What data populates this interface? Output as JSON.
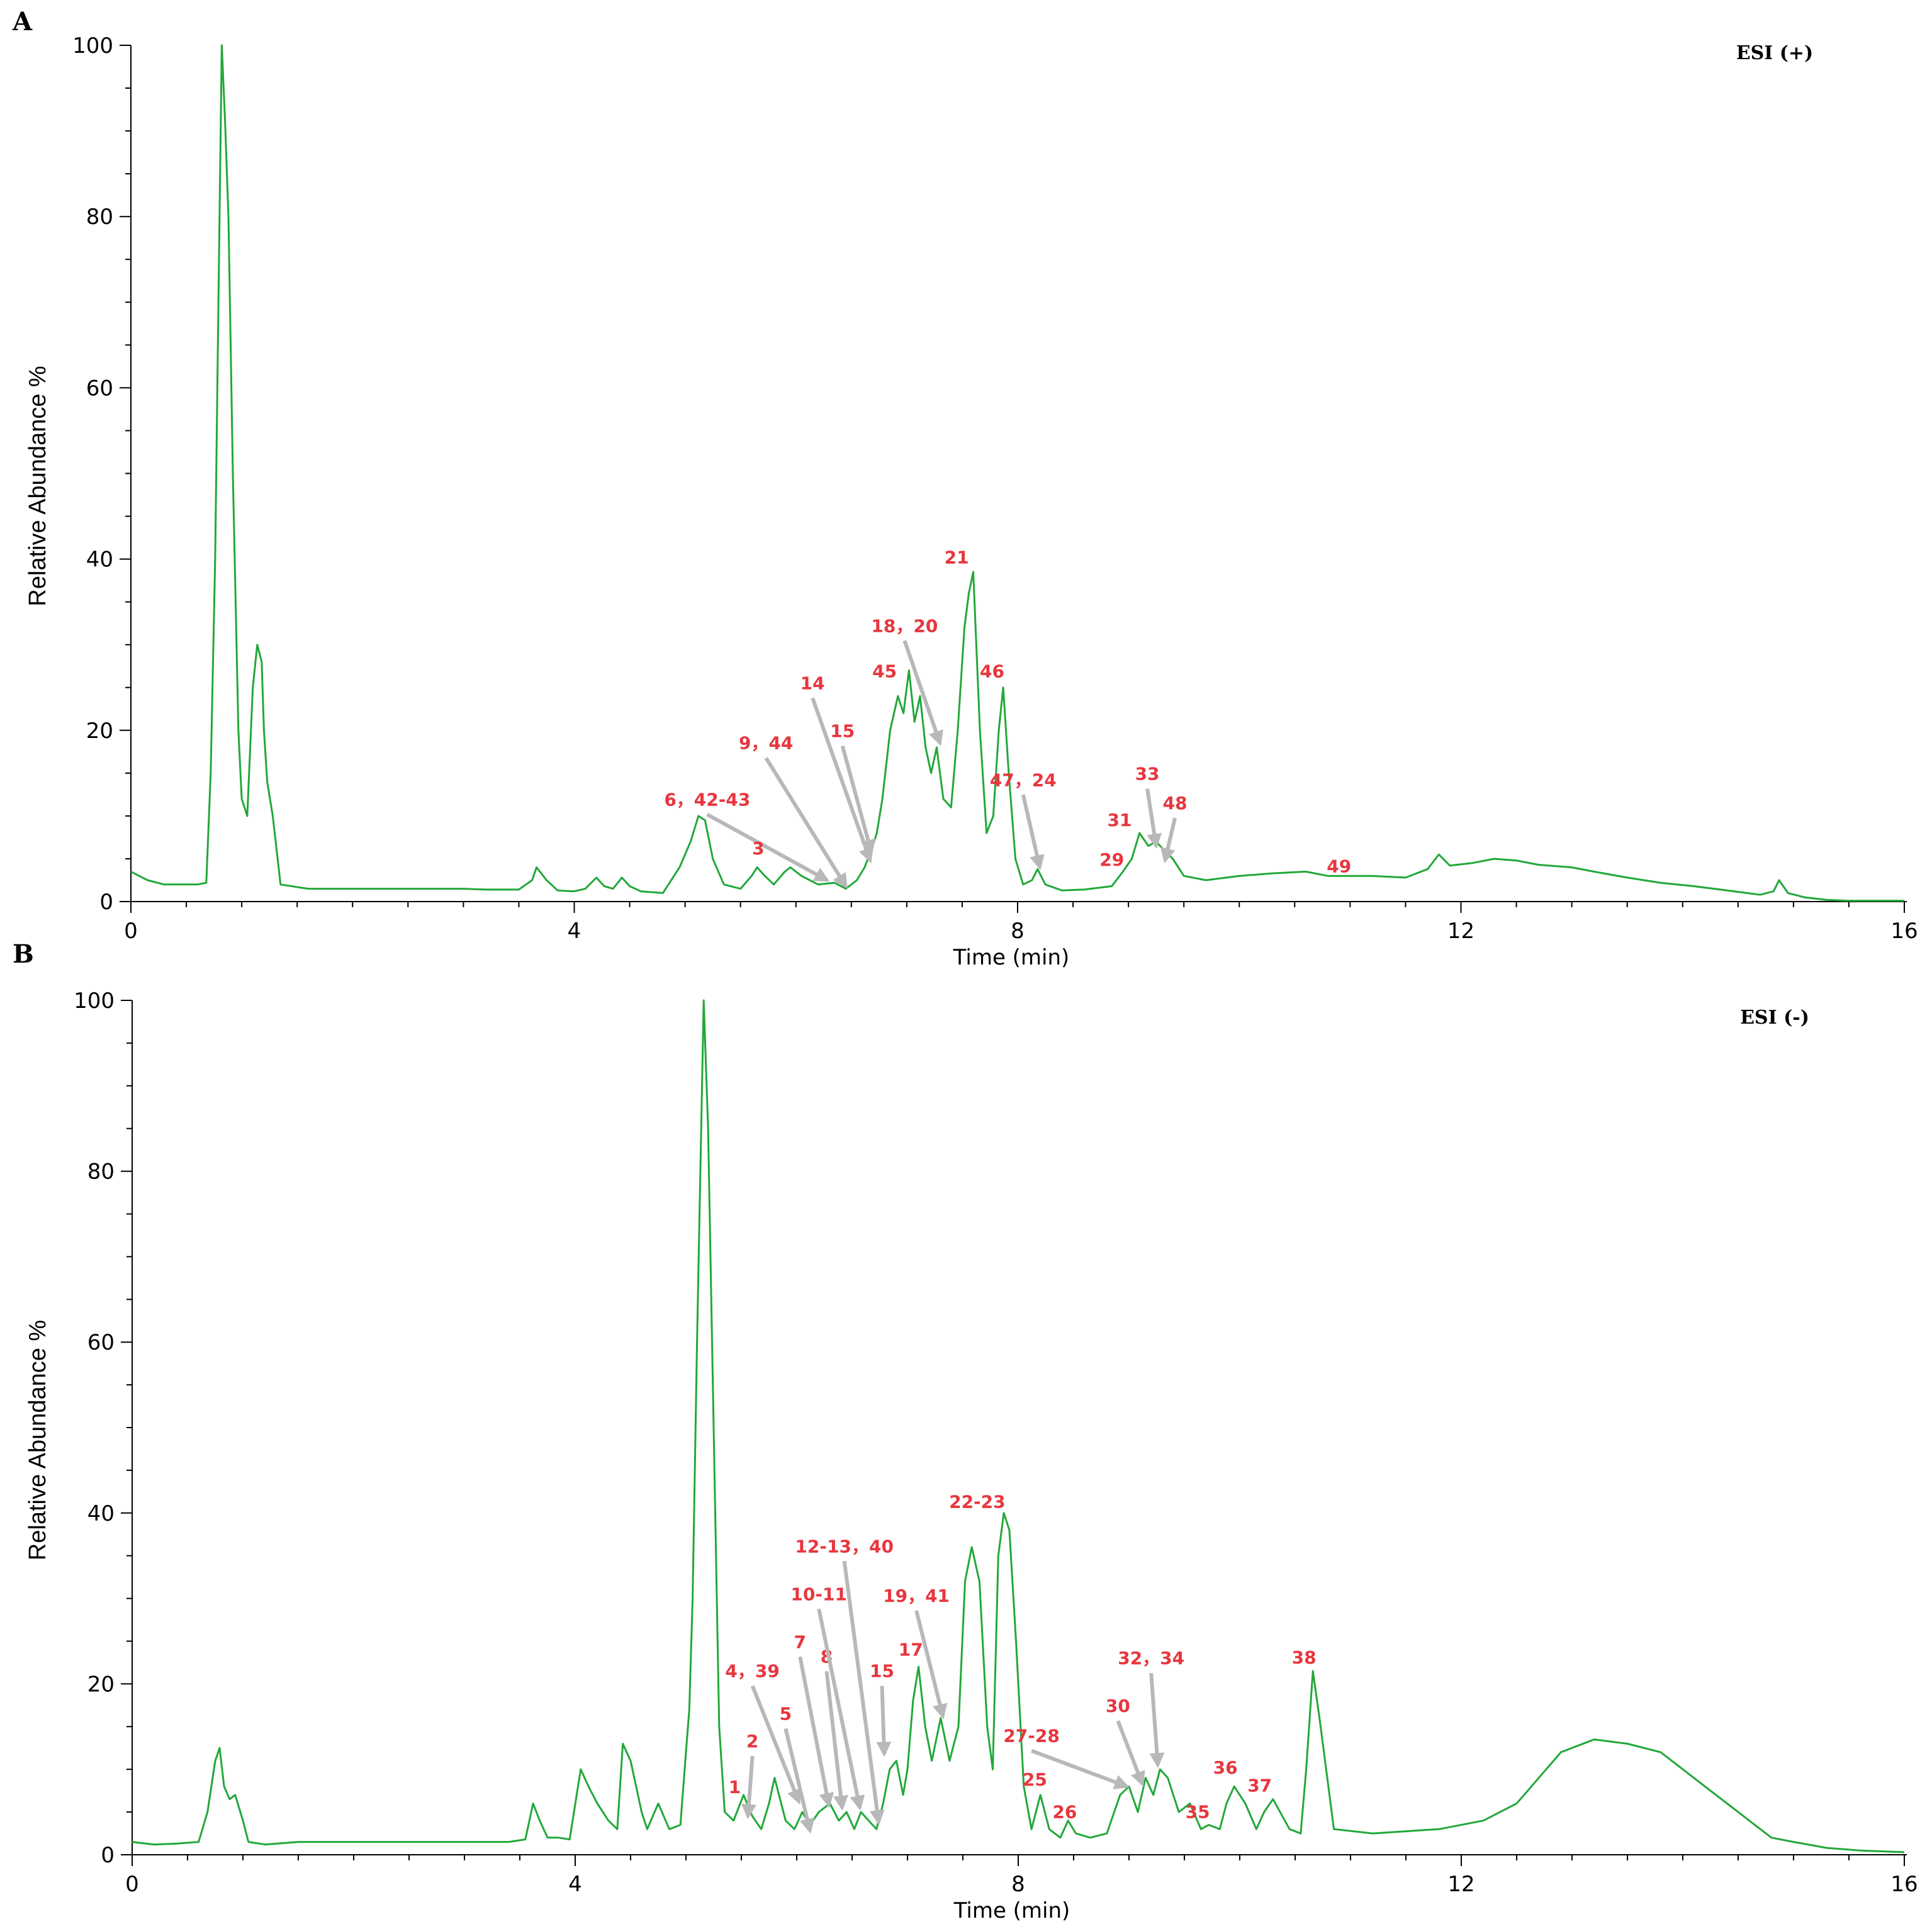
{
  "chart_data": [
    {
      "type": "line",
      "panel": "A",
      "mode_label": "ESI (+)",
      "xlabel": "Time (min)",
      "ylabel": "Relative Abundance %",
      "xlim": [
        0,
        16
      ],
      "ylim": [
        0,
        100
      ],
      "xticks": [
        "0",
        "4",
        "8",
        "12",
        "16"
      ],
      "yticks": [
        "0",
        "20",
        "40",
        "60",
        "80",
        "100"
      ],
      "line_color": "#22a83a",
      "series": [
        {
          "x": [
            0.0,
            0.15,
            0.3,
            0.6,
            0.68,
            0.72,
            0.76,
            0.79,
            0.82,
            0.85,
            0.88,
            0.92,
            0.97,
            1.0,
            1.05,
            1.1,
            1.14,
            1.18,
            1.2,
            1.23,
            1.28,
            1.35,
            1.6,
            2.0,
            2.5,
            3.0,
            3.2,
            3.5,
            3.62,
            3.66,
            3.75,
            3.85,
            4.0,
            4.1,
            4.2,
            4.27,
            4.35,
            4.43,
            4.5,
            4.6,
            4.8,
            4.95,
            5.05,
            5.12,
            5.18,
            5.25,
            5.35,
            5.5,
            5.6,
            5.65,
            5.72,
            5.8,
            5.9,
            5.95,
            6.05,
            6.2,
            6.35,
            6.45,
            6.55,
            6.62,
            6.68,
            6.73,
            6.78,
            6.85,
            6.92,
            6.97,
            7.02,
            7.07,
            7.12,
            7.17,
            7.22,
            7.27,
            7.33,
            7.4,
            7.46,
            7.52,
            7.56,
            7.6,
            7.66,
            7.72,
            7.78,
            7.83,
            7.87,
            7.92,
            7.98,
            8.05,
            8.13,
            8.18,
            8.25,
            8.4,
            8.6,
            8.85,
            8.95,
            9.03,
            9.1,
            9.18,
            9.25,
            9.32,
            9.4,
            9.5,
            9.7,
            10.0,
            10.3,
            10.6,
            10.8,
            11.0,
            11.2,
            11.5,
            11.7,
            11.8,
            11.9,
            12.1,
            12.3,
            12.5,
            12.7,
            13.0,
            13.2,
            13.5,
            13.8,
            14.1,
            14.4,
            14.7,
            14.82,
            14.87,
            14.95,
            15.1,
            15.3,
            15.5,
            15.7,
            15.9,
            16.0
          ],
          "y": [
            3.5,
            2.5,
            2.0,
            2.0,
            2.2,
            15,
            40,
            70,
            100,
            91,
            80,
            50,
            20,
            12,
            10,
            25,
            30,
            28,
            20,
            14,
            10,
            2.0,
            1.5,
            1.5,
            1.5,
            1.5,
            1.4,
            1.4,
            2.5,
            4.0,
            2.5,
            1.3,
            1.2,
            1.5,
            2.8,
            1.8,
            1.5,
            2.8,
            1.8,
            1.2,
            1.0,
            4.0,
            7.0,
            10.0,
            9.5,
            5.0,
            2.0,
            1.5,
            3.0,
            4.0,
            3.0,
            2.0,
            3.5,
            4.0,
            3.0,
            2.0,
            2.2,
            1.5,
            2.5,
            4.0,
            6.0,
            8.0,
            12.0,
            20.0,
            24.0,
            22.0,
            27.0,
            21.0,
            24.0,
            18.0,
            15.0,
            18.0,
            12.0,
            11.0,
            20.0,
            32.0,
            36.0,
            38.5,
            20.0,
            8.0,
            10.0,
            20.0,
            25.0,
            15.0,
            5.0,
            2.0,
            2.5,
            3.8,
            2.0,
            1.3,
            1.4,
            1.8,
            3.5,
            5.0,
            8.0,
            6.5,
            7.0,
            6.0,
            5.0,
            3.0,
            2.5,
            3.0,
            3.3,
            3.5,
            3.0,
            3.0,
            3.0,
            2.8,
            3.8,
            5.5,
            4.2,
            4.5,
            5.0,
            4.8,
            4.3,
            4.0,
            3.5,
            2.8,
            2.2,
            1.8,
            1.3,
            0.8,
            1.2,
            2.5,
            1.0,
            0.5,
            0.2,
            0.1,
            0.1,
            0.1,
            0.1
          ]
        }
      ],
      "peak_labels": [
        {
          "text": "6，42-43",
          "lx": 5.2,
          "ly": 11.2,
          "ax": 6.28,
          "ay": 2.5
        },
        {
          "text": "3",
          "lx": 5.66,
          "ly": 5.5,
          "ax": null,
          "ay": null
        },
        {
          "text": "9，44",
          "lx": 5.73,
          "ly": 17.8,
          "ax": 6.45,
          "ay": 1.8
        },
        {
          "text": "14",
          "lx": 6.15,
          "ly": 24.8,
          "ax": 6.67,
          "ay": 4.8
        },
        {
          "text": "15",
          "lx": 6.42,
          "ly": 19.2,
          "ax": 6.68,
          "ay": 5.8
        },
        {
          "text": "45",
          "lx": 6.8,
          "ly": 26.2,
          "ax": null,
          "ay": null
        },
        {
          "text": "18，20",
          "lx": 6.98,
          "ly": 31.5,
          "ax": 7.3,
          "ay": 18.5
        },
        {
          "text": "21",
          "lx": 7.45,
          "ly": 39.5,
          "ax": null,
          "ay": null
        },
        {
          "text": "46",
          "lx": 7.77,
          "ly": 26.2,
          "ax": null,
          "ay": null
        },
        {
          "text": "47，24",
          "lx": 8.05,
          "ly": 13.5,
          "ax": 8.2,
          "ay": 4.0
        },
        {
          "text": "29",
          "lx": 8.85,
          "ly": 4.2,
          "ax": null,
          "ay": null
        },
        {
          "text": "31",
          "lx": 8.92,
          "ly": 8.8,
          "ax": null,
          "ay": null
        },
        {
          "text": "33",
          "lx": 9.17,
          "ly": 14.2,
          "ax": 9.25,
          "ay": 6.5
        },
        {
          "text": "48",
          "lx": 9.42,
          "ly": 10.8,
          "ax": 9.33,
          "ay": 4.8
        },
        {
          "text": "49",
          "lx": 10.9,
          "ly": 3.4,
          "ax": null,
          "ay": null
        }
      ]
    },
    {
      "type": "line",
      "panel": "B",
      "mode_label": "ESI (-)",
      "xlabel": "Time (min)",
      "ylabel": "Relative Abundance %",
      "xlim": [
        0,
        16
      ],
      "ylim": [
        0,
        100
      ],
      "xticks": [
        "0",
        "4",
        "8",
        "12",
        "16"
      ],
      "yticks": [
        "0",
        "20",
        "40",
        "60",
        "80",
        "100"
      ],
      "line_color": "#22a83a",
      "series": [
        {
          "x": [
            0.0,
            0.2,
            0.4,
            0.6,
            0.68,
            0.75,
            0.79,
            0.83,
            0.88,
            0.93,
            1.0,
            1.05,
            1.2,
            1.5,
            2.0,
            2.5,
            3.0,
            3.4,
            3.55,
            3.62,
            3.68,
            3.75,
            3.85,
            3.95,
            4.05,
            4.12,
            4.2,
            4.3,
            4.38,
            4.43,
            4.5,
            4.6,
            4.65,
            4.75,
            4.85,
            4.95,
            5.0,
            5.03,
            5.06,
            5.1,
            5.13,
            5.16,
            5.2,
            5.25,
            5.3,
            5.35,
            5.43,
            5.52,
            5.6,
            5.68,
            5.75,
            5.8,
            5.9,
            5.98,
            6.05,
            6.12,
            6.2,
            6.3,
            6.38,
            6.45,
            6.52,
            6.58,
            6.65,
            6.72,
            6.78,
            6.84,
            6.9,
            6.96,
            7.0,
            7.05,
            7.1,
            7.16,
            7.22,
            7.3,
            7.38,
            7.46,
            7.52,
            7.58,
            7.65,
            7.72,
            7.77,
            7.82,
            7.87,
            7.92,
            7.98,
            8.05,
            8.12,
            8.2,
            8.28,
            8.38,
            8.45,
            8.52,
            8.65,
            8.8,
            8.92,
            9.0,
            9.08,
            9.15,
            9.22,
            9.28,
            9.35,
            9.45,
            9.55,
            9.65,
            9.72,
            9.82,
            9.88,
            9.95,
            10.05,
            10.15,
            10.22,
            10.3,
            10.45,
            10.55,
            10.6,
            10.66,
            10.72,
            10.85,
            11.2,
            11.8,
            12.2,
            12.5,
            12.7,
            12.9,
            13.2,
            13.5,
            13.8,
            14.0,
            14.2,
            14.4,
            14.6,
            14.8,
            15.0,
            15.3,
            15.6,
            16.0
          ],
          "y": [
            1.5,
            1.2,
            1.3,
            1.5,
            5.0,
            11.0,
            12.5,
            8.0,
            6.5,
            7.0,
            4.0,
            1.5,
            1.2,
            1.5,
            1.5,
            1.5,
            1.5,
            1.5,
            1.8,
            6.0,
            4.0,
            2.0,
            2.0,
            1.8,
            10.0,
            8.0,
            6.0,
            4.0,
            3.0,
            13.0,
            11.0,
            5.0,
            3.0,
            6.0,
            3.0,
            3.5,
            12.0,
            17.0,
            30.0,
            60.0,
            80.0,
            100.0,
            85.0,
            50.0,
            15.0,
            5.0,
            4.0,
            7.0,
            4.5,
            3.0,
            6.0,
            9.0,
            4.0,
            3.0,
            5.0,
            3.5,
            5.0,
            6.0,
            4.0,
            5.0,
            3.0,
            5.0,
            4.0,
            3.0,
            6.0,
            10.0,
            11.0,
            7.0,
            10.0,
            18.0,
            22.0,
            15.0,
            11.0,
            16.0,
            11.0,
            15.0,
            32.0,
            36.0,
            32.0,
            15.0,
            10.0,
            35.0,
            40.0,
            38.0,
            25.0,
            8.0,
            3.0,
            7.0,
            3.0,
            2.0,
            4.0,
            2.5,
            2.0,
            2.5,
            7.0,
            8.0,
            5.0,
            9.0,
            7.0,
            10.0,
            9.0,
            5.0,
            6.0,
            3.0,
            3.5,
            3.0,
            6.0,
            8.0,
            6.0,
            3.0,
            5.0,
            6.5,
            3.0,
            2.5,
            10.0,
            21.5,
            16.0,
            3.0,
            2.5,
            3.0,
            4.0,
            6.0,
            9.0,
            12.0,
            13.5,
            13.0,
            12.0,
            10.0,
            8.0,
            6.0,
            4.0,
            2.0,
            1.5,
            0.8,
            0.5,
            0.3
          ]
        }
      ],
      "peak_labels": [
        {
          "text": "1",
          "lx": 5.44,
          "ly": 7.2,
          "ax": null,
          "ay": null
        },
        {
          "text": "2",
          "lx": 5.6,
          "ly": 12.6,
          "ax": 5.56,
          "ay": 4.5
        },
        {
          "text": "4，39",
          "lx": 5.6,
          "ly": 20.8,
          "ax": 6.02,
          "ay": 6.2
        },
        {
          "text": "5",
          "lx": 5.9,
          "ly": 15.8,
          "ax": 6.12,
          "ay": 2.8
        },
        {
          "text": "7",
          "lx": 6.03,
          "ly": 24.2,
          "ax": 6.29,
          "ay": 5.8
        },
        {
          "text": "8",
          "lx": 6.27,
          "ly": 22.5,
          "ax": 6.41,
          "ay": 5.5
        },
        {
          "text": "10-11",
          "lx": 6.2,
          "ly": 29.8,
          "ax": 6.57,
          "ay": 5.5
        },
        {
          "text": "12-13，40",
          "lx": 6.43,
          "ly": 35.4,
          "ax": 6.74,
          "ay": 3.8
        },
        {
          "text": "15",
          "lx": 6.77,
          "ly": 20.8,
          "ax": 6.79,
          "ay": 11.8
        },
        {
          "text": "17",
          "lx": 7.03,
          "ly": 23.3,
          "ax": null,
          "ay": null
        },
        {
          "text": "19，41",
          "lx": 7.08,
          "ly": 29.6,
          "ax": 7.32,
          "ay": 16.2
        },
        {
          "text": "22-23",
          "lx": 7.63,
          "ly": 40.6,
          "ax": null,
          "ay": null
        },
        {
          "text": "25",
          "lx": 8.15,
          "ly": 8.1,
          "ax": null,
          "ay": null
        },
        {
          "text": "26",
          "lx": 8.42,
          "ly": 4.3,
          "ax": null,
          "ay": null
        },
        {
          "text": "27-28",
          "lx": 8.12,
          "ly": 13.2,
          "ax": 8.98,
          "ay": 8.0
        },
        {
          "text": "30",
          "lx": 8.9,
          "ly": 16.7,
          "ax": 9.12,
          "ay": 8.3
        },
        {
          "text": "32，34",
          "lx": 9.2,
          "ly": 22.3,
          "ax": 9.26,
          "ay": 10.5
        },
        {
          "text": "35",
          "lx": 9.62,
          "ly": 4.3,
          "ax": null,
          "ay": null
        },
        {
          "text": "36",
          "lx": 9.87,
          "ly": 9.5,
          "ax": null,
          "ay": null
        },
        {
          "text": "37",
          "lx": 10.18,
          "ly": 7.4,
          "ax": null,
          "ay": null
        },
        {
          "text": "38",
          "lx": 10.58,
          "ly": 22.4,
          "ax": null,
          "ay": null
        }
      ]
    }
  ]
}
